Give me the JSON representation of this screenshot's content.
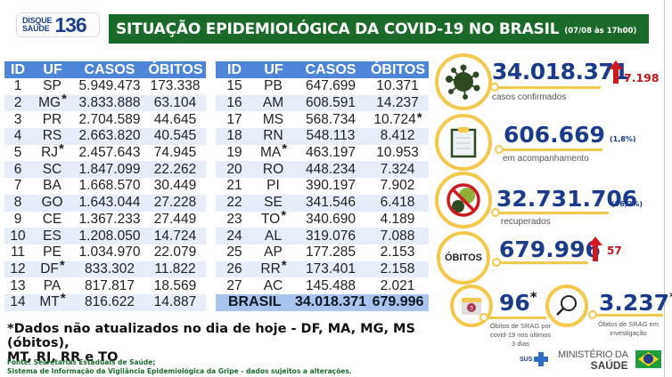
{
  "header": {
    "logo_line1": "DISQUE",
    "logo_line2": "SAÚDE",
    "logo_number": "136",
    "title": "SITUAÇÃO EPIDEMIOLÓGICA DA COVID-19 NO BRASIL",
    "date": "(07/08 às 17h00)"
  },
  "table": {
    "columns": [
      "ID",
      "UF",
      "CASOS",
      "ÓBITOS"
    ],
    "left_rows": [
      {
        "id": "1",
        "uf": "SP",
        "uf_star": "",
        "casos": "5.949.473",
        "obitos": "173.338",
        "obitos_star": ""
      },
      {
        "id": "2",
        "uf": "MG",
        "uf_star": "*",
        "casos": "3.833.888",
        "obitos": "63.104",
        "obitos_star": ""
      },
      {
        "id": "3",
        "uf": "PR",
        "uf_star": "",
        "casos": "2.704.589",
        "obitos": "44.645",
        "obitos_star": ""
      },
      {
        "id": "4",
        "uf": "RS",
        "uf_star": "",
        "casos": "2.663.820",
        "obitos": "40.545",
        "obitos_star": ""
      },
      {
        "id": "5",
        "uf": "RJ",
        "uf_star": "*",
        "casos": "2.457.643",
        "obitos": "74.945",
        "obitos_star": ""
      },
      {
        "id": "6",
        "uf": "SC",
        "uf_star": "",
        "casos": "1.847.099",
        "obitos": "22.262",
        "obitos_star": ""
      },
      {
        "id": "7",
        "uf": "BA",
        "uf_star": "",
        "casos": "1.668.570",
        "obitos": "30.449",
        "obitos_star": ""
      },
      {
        "id": "8",
        "uf": "GO",
        "uf_star": "",
        "casos": "1.643.044",
        "obitos": "27.228",
        "obitos_star": ""
      },
      {
        "id": "9",
        "uf": "CE",
        "uf_star": "",
        "casos": "1.367.233",
        "obitos": "27.449",
        "obitos_star": ""
      },
      {
        "id": "10",
        "uf": "ES",
        "uf_star": "",
        "casos": "1.208.050",
        "obitos": "14.724",
        "obitos_star": ""
      },
      {
        "id": "11",
        "uf": "PE",
        "uf_star": "",
        "casos": "1.034.970",
        "obitos": "22.079",
        "obitos_star": ""
      },
      {
        "id": "12",
        "uf": "DF",
        "uf_star": "*",
        "casos": "833.302",
        "obitos": "11.822",
        "obitos_star": ""
      },
      {
        "id": "13",
        "uf": "PA",
        "uf_star": "",
        "casos": "817.817",
        "obitos": "18.569",
        "obitos_star": ""
      },
      {
        "id": "14",
        "uf": "MT",
        "uf_star": "*",
        "casos": "816.622",
        "obitos": "14.887",
        "obitos_star": ""
      }
    ],
    "right_rows": [
      {
        "id": "15",
        "uf": "PB",
        "uf_star": "",
        "casos": "647.699",
        "obitos": "10.371",
        "obitos_star": ""
      },
      {
        "id": "16",
        "uf": "AM",
        "uf_star": "",
        "casos": "608.591",
        "obitos": "14.237",
        "obitos_star": ""
      },
      {
        "id": "17",
        "uf": "MS",
        "uf_star": "",
        "casos": "568.734",
        "obitos": "10.724",
        "obitos_star": "*"
      },
      {
        "id": "18",
        "uf": "RN",
        "uf_star": "",
        "casos": "548.113",
        "obitos": "8.412",
        "obitos_star": ""
      },
      {
        "id": "19",
        "uf": "MA",
        "uf_star": "*",
        "casos": "463.197",
        "obitos": "10.953",
        "obitos_star": ""
      },
      {
        "id": "20",
        "uf": "RO",
        "uf_star": "",
        "casos": "448.234",
        "obitos": "7.324",
        "obitos_star": ""
      },
      {
        "id": "21",
        "uf": "PI",
        "uf_star": "",
        "casos": "390.197",
        "obitos": "7.902",
        "obitos_star": ""
      },
      {
        "id": "22",
        "uf": "SE",
        "uf_star": "",
        "casos": "341.546",
        "obitos": "6.418",
        "obitos_star": ""
      },
      {
        "id": "23",
        "uf": "TO",
        "uf_star": "*",
        "casos": "340.690",
        "obitos": "4.189",
        "obitos_star": ""
      },
      {
        "id": "24",
        "uf": "AL",
        "uf_star": "",
        "casos": "319.076",
        "obitos": "7.088",
        "obitos_star": ""
      },
      {
        "id": "25",
        "uf": "AP",
        "uf_star": "",
        "casos": "177.285",
        "obitos": "2.153",
        "obitos_star": ""
      },
      {
        "id": "26",
        "uf": "RR",
        "uf_star": "*",
        "casos": "173.401",
        "obitos": "2.158",
        "obitos_star": ""
      },
      {
        "id": "27",
        "uf": "AC",
        "uf_star": "",
        "casos": "145.488",
        "obitos": "2.021",
        "obitos_star": ""
      }
    ],
    "total": {
      "label": "BRASIL",
      "casos": "34.018.371",
      "obitos": "679.996"
    }
  },
  "stats": {
    "confirmed": {
      "value": "34.018.371",
      "delta": "7.198",
      "label": "casos confirmados",
      "icon": "virus-icon"
    },
    "monitoring": {
      "value": "606.669",
      "pct": "(1,8%)",
      "label": "em acompanhamento",
      "icon": "clipboard-icon"
    },
    "recovered": {
      "value": "32.731.706",
      "pct": "(96,2%)",
      "label": "recuperados",
      "icon": "no-virus-icon"
    },
    "deaths": {
      "badge": "ÓBITOS",
      "value": "679.996",
      "delta": "57"
    },
    "srag_recent": {
      "value": "96",
      "star": "*",
      "label_l1": "Óbitos de SRAG por",
      "label_l2": "covid-19 nos últimos",
      "label_l3": "3 dias",
      "calendar_number": "3"
    },
    "srag_investigation": {
      "value": "3.237",
      "star": "*",
      "label_l1": "Óbitos de SRAG em",
      "label_l2": "investigação"
    }
  },
  "footer": {
    "note_line1": "*Dados não atualizados no dia de hoje - DF, MA, MG, MS (óbitos),",
    "note_line2": "MT, RJ, RR e TO",
    "source_line1": "Fonte: Secretarias Estaduais de Saúde;",
    "source_line2": "Sistema de Informação da Vigilância Epidemiológica da Gripe - dados sujeitos a alterações.",
    "sus_label": "SUS",
    "ministry_line1": "MINISTÉRIO DA",
    "ministry_line2": "SAÚDE"
  },
  "colors": {
    "header_green": "#1a6a2c",
    "table_header_blue": "#4d86d9",
    "row_alt": "#e7eefa",
    "total_row": "#a9c4ef",
    "stat_blue": "#1b3a8c",
    "ring_yellow": "#f2c94c",
    "alert_red": "#d0191f"
  }
}
